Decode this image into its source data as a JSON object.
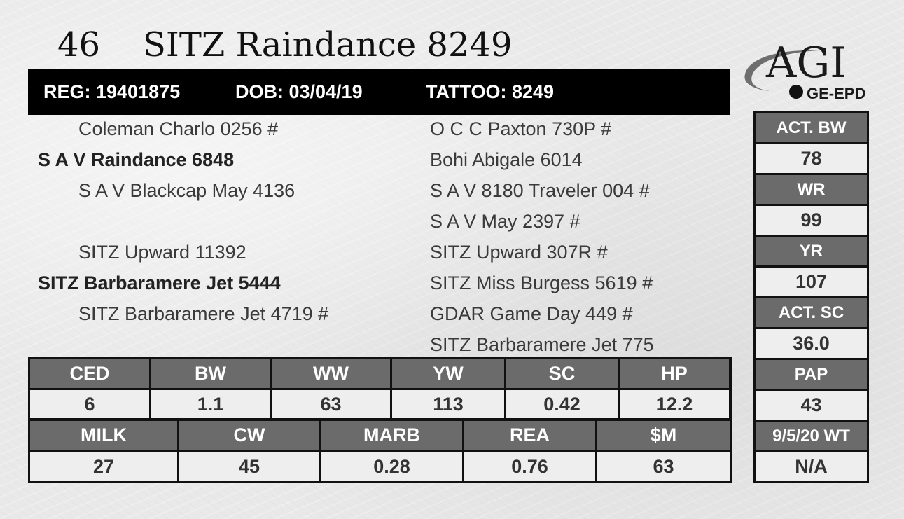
{
  "lot_number": "46",
  "animal_name": "SITZ Raindance 8249",
  "info_bar": {
    "reg": "REG: 19401875",
    "dob": "DOB: 03/04/19",
    "tattoo": "TATTOO: 8249"
  },
  "logo": {
    "main": "AGI",
    "sub": "GE-EPD"
  },
  "pedigree": {
    "sire_sire": "Coleman Charlo 0256 #",
    "sire": "S A V Raindance 6848",
    "sire_dam": "S A V Blackcap May 4136",
    "dam_sire": "SITZ Upward 11392",
    "dam": "SITZ Barbaramere Jet 5444",
    "dam_dam": "SITZ Barbaramere Jet 4719 #",
    "right": [
      "O C C Paxton 730P #",
      "Bohi Abigale 6014",
      "S A V 8180 Traveler 004 #",
      "S A V May 2397 #",
      "SITZ Upward 307R #",
      "SITZ Miss Burgess 5619 #",
      "GDAR Game Day 449 #",
      "SITZ Barbaramere Jet 775"
    ]
  },
  "epd_row1": {
    "headers": [
      "CED",
      "BW",
      "WW",
      "YW",
      "SC",
      "HP"
    ],
    "values": [
      "6",
      "1.1",
      "63",
      "113",
      "0.42",
      "12.2"
    ]
  },
  "epd_row2": {
    "headers": [
      "MILK",
      "CW",
      "MARB",
      "REA",
      "$M"
    ],
    "values": [
      "27",
      "45",
      "0.28",
      "0.76",
      "63"
    ]
  },
  "side_stats": [
    {
      "label": "ACT. BW",
      "value": "78"
    },
    {
      "label": "WR",
      "value": "99"
    },
    {
      "label": "YR",
      "value": "107"
    },
    {
      "label": "ACT. SC",
      "value": "36.0"
    },
    {
      "label": "PAP",
      "value": "43"
    },
    {
      "label": "9/5/20 WT",
      "value": "N/A"
    }
  ]
}
